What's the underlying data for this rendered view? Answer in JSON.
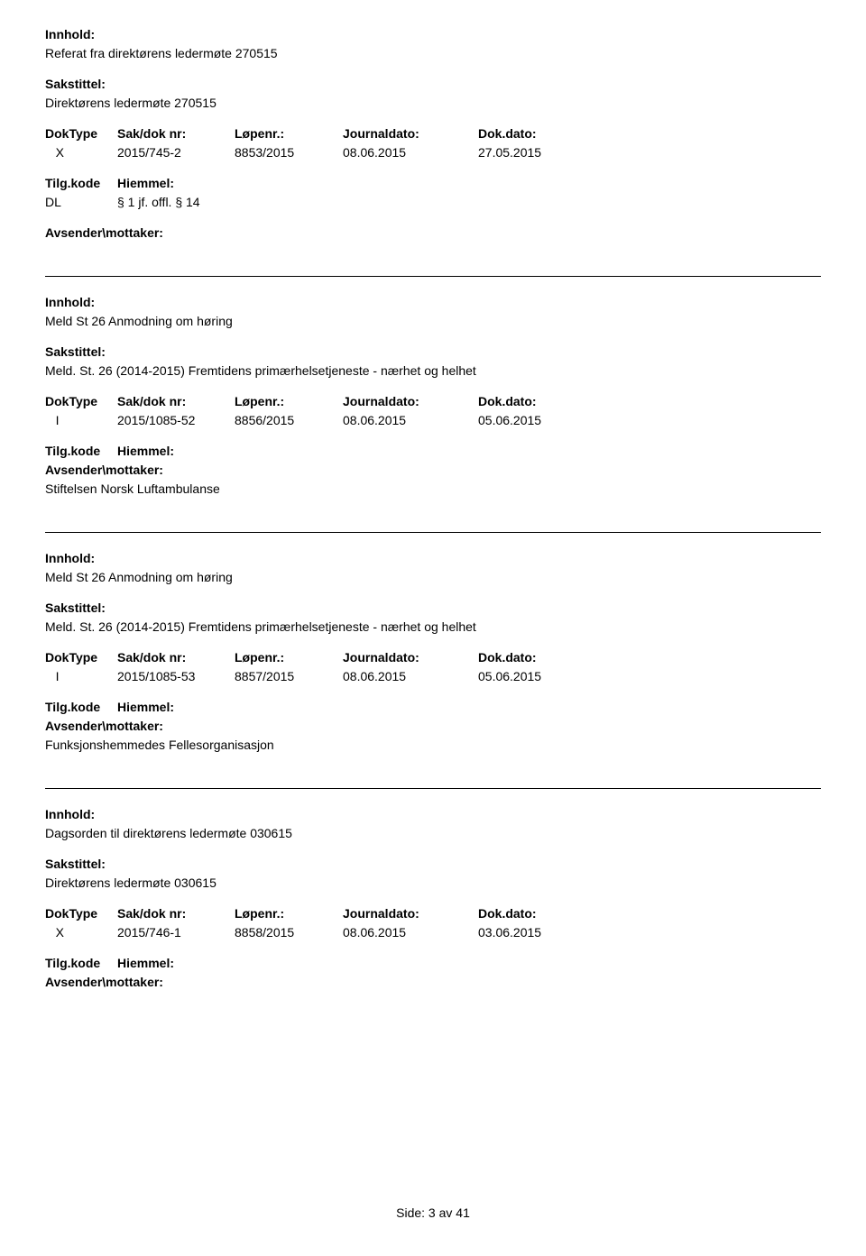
{
  "labels": {
    "innhold": "Innhold:",
    "sakstittel": "Sakstittel:",
    "doktype": "DokType",
    "saknr": "Sak/dok nr:",
    "lopenr": "Løpenr.:",
    "journaldato": "Journaldato:",
    "dokdato": "Dok.dato:",
    "tilgkode": "Tilg.kode",
    "hiemmel": "Hiemmel:",
    "avsender": "Avsender\\mottaker:"
  },
  "entries": [
    {
      "innhold": "Referat fra direktørens ledermøte 270515",
      "sakstittel": "Direktørens ledermøte 270515",
      "doktype": "X",
      "saknr": "2015/745-2",
      "lopenr": "8853/2015",
      "journaldato": "08.06.2015",
      "dokdato": "27.05.2015",
      "tilgkode": "DL",
      "hiemmel": "§ 1 jf. offl. § 14",
      "avsender": ""
    },
    {
      "innhold": "Meld St 26 Anmodning om høring",
      "sakstittel": "Meld. St. 26 (2014-2015) Fremtidens primærhelsetjeneste - nærhet og helhet",
      "doktype": "I",
      "saknr": "2015/1085-52",
      "lopenr": "8856/2015",
      "journaldato": "08.06.2015",
      "dokdato": "05.06.2015",
      "tilgkode": "",
      "hiemmel": "",
      "avsender": "Stiftelsen Norsk Luftambulanse"
    },
    {
      "innhold": "Meld St 26 Anmodning om høring",
      "sakstittel": "Meld. St. 26 (2014-2015) Fremtidens primærhelsetjeneste - nærhet og helhet",
      "doktype": "I",
      "saknr": "2015/1085-53",
      "lopenr": "8857/2015",
      "journaldato": "08.06.2015",
      "dokdato": "05.06.2015",
      "tilgkode": "",
      "hiemmel": "",
      "avsender": "Funksjonshemmedes Fellesorganisasjon"
    },
    {
      "innhold": "Dagsorden til direktørens ledermøte 030615",
      "sakstittel": "Direktørens ledermøte 030615",
      "doktype": "X",
      "saknr": "2015/746-1",
      "lopenr": "8858/2015",
      "journaldato": "08.06.2015",
      "dokdato": "03.06.2015",
      "tilgkode": "",
      "hiemmel": "",
      "avsender": ""
    }
  ],
  "footer": {
    "text": "Side:  3 av  41"
  }
}
